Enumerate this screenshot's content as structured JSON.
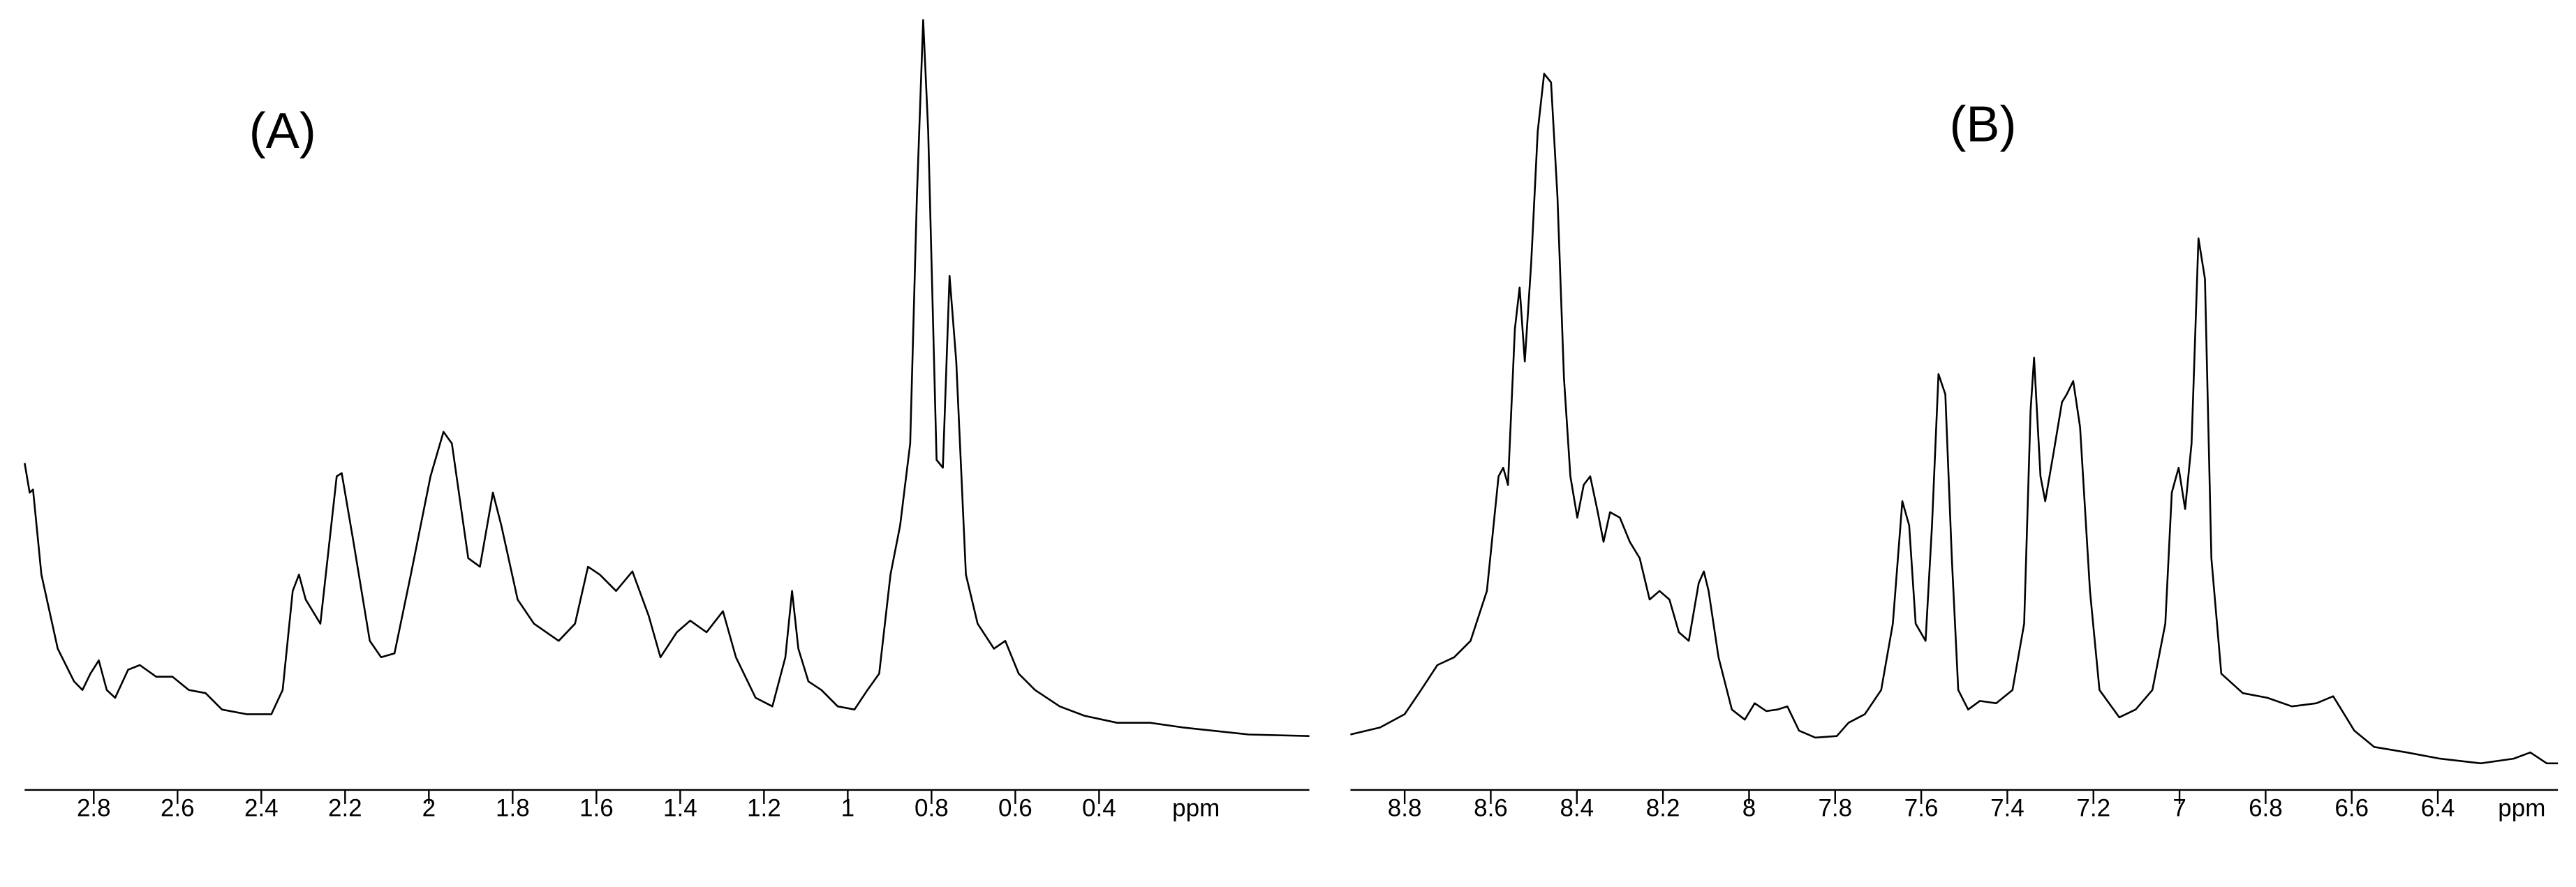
{
  "chart_data": [
    {
      "type": "line",
      "title": "(A)",
      "xlabel": "ppm",
      "xlim": [
        2.965,
        -0.102
      ],
      "ylim": [
        0,
        100
      ],
      "color": "#000000",
      "xticks": [
        2.8,
        2.6,
        2.4,
        2.2,
        2.0,
        1.8,
        1.6,
        1.4,
        1.2,
        1.0,
        0.8,
        0.6,
        0.4
      ],
      "x": [
        2.965,
        2.953,
        2.945,
        2.925,
        2.886,
        2.847,
        2.827,
        2.808,
        2.788,
        2.769,
        2.749,
        2.718,
        2.69,
        2.651,
        2.612,
        2.573,
        2.533,
        2.494,
        2.435,
        2.376,
        2.349,
        2.325,
        2.31,
        2.294,
        2.259,
        2.22,
        2.208,
        2.18,
        2.141,
        2.114,
        2.082,
        2.043,
        1.996,
        1.965,
        1.945,
        1.906,
        1.878,
        1.847,
        1.827,
        1.788,
        1.749,
        1.69,
        1.651,
        1.62,
        1.592,
        1.553,
        1.514,
        1.475,
        1.447,
        1.408,
        1.376,
        1.337,
        1.298,
        1.267,
        1.22,
        1.18,
        1.149,
        1.133,
        1.118,
        1.094,
        1.063,
        1.024,
        0.984,
        0.953,
        0.925,
        0.898,
        0.875,
        0.851,
        0.835,
        0.82,
        0.808,
        0.788,
        0.773,
        0.757,
        0.741,
        0.718,
        0.69,
        0.651,
        0.624,
        0.592,
        0.553,
        0.494,
        0.435,
        0.357,
        0.278,
        0.2,
        0.043,
        -0.102
      ],
      "values": [
        41.7,
        37.9,
        38.3,
        27.4,
        17.9,
        13.7,
        12.6,
        14.7,
        16.4,
        12.6,
        11.6,
        15.2,
        15.8,
        14.3,
        14.3,
        12.6,
        12.2,
        10.1,
        9.5,
        9.5,
        12.6,
        25.3,
        27.4,
        24.2,
        21.1,
        40.0,
        40.4,
        31.6,
        18.9,
        16.8,
        17.3,
        27.4,
        40.0,
        45.7,
        44.2,
        29.5,
        28.4,
        37.9,
        33.7,
        24.2,
        21.1,
        18.9,
        21.1,
        28.4,
        27.4,
        25.3,
        27.8,
        22.1,
        16.8,
        20.0,
        21.5,
        20.0,
        22.7,
        16.8,
        11.6,
        10.5,
        16.8,
        25.3,
        17.9,
        13.7,
        12.6,
        10.5,
        10.1,
        12.6,
        14.7,
        27.4,
        33.7,
        44.2,
        75.8,
        98.5,
        84.2,
        42.1,
        41.1,
        65.7,
        54.7,
        27.4,
        21.1,
        17.9,
        18.9,
        14.7,
        12.6,
        10.5,
        9.3,
        8.4,
        8.4,
        7.8,
        6.9,
        6.7
      ]
    },
    {
      "type": "line",
      "title": "(B)",
      "xlabel": "ppm",
      "xlim": [
        8.926,
        6.121
      ],
      "ylim": [
        0,
        100
      ],
      "color": "#000000",
      "xticks": [
        8.8,
        8.6,
        8.4,
        8.2,
        8.0,
        7.8,
        7.6,
        7.4,
        7.2,
        7.0,
        6.8,
        6.6,
        6.4
      ],
      "x": [
        8.926,
        8.857,
        8.8,
        8.762,
        8.724,
        8.685,
        8.647,
        8.609,
        8.582,
        8.571,
        8.56,
        8.544,
        8.533,
        8.521,
        8.506,
        8.491,
        8.476,
        8.46,
        8.445,
        8.43,
        8.415,
        8.399,
        8.384,
        8.369,
        8.353,
        8.338,
        8.323,
        8.3,
        8.277,
        8.254,
        8.231,
        8.208,
        8.185,
        8.163,
        8.14,
        8.117,
        8.105,
        8.094,
        8.071,
        8.04,
        8.01,
        7.987,
        7.96,
        7.934,
        7.911,
        7.884,
        7.846,
        7.796,
        7.769,
        7.731,
        7.693,
        7.666,
        7.644,
        7.628,
        7.613,
        7.59,
        7.575,
        7.56,
        7.544,
        7.529,
        7.514,
        7.491,
        7.464,
        7.426,
        7.388,
        7.361,
        7.346,
        7.338,
        7.323,
        7.312,
        7.292,
        7.273,
        7.262,
        7.247,
        7.231,
        7.208,
        7.186,
        7.14,
        7.102,
        7.063,
        7.033,
        7.018,
        7.002,
        6.987,
        6.972,
        6.956,
        6.941,
        6.926,
        6.903,
        6.853,
        6.796,
        6.739,
        6.682,
        6.643,
        6.624,
        6.594,
        6.548,
        6.472,
        6.395,
        6.3,
        6.224,
        6.185,
        6.147,
        6.121
      ],
      "values": [
        6.9,
        7.8,
        9.5,
        12.6,
        15.8,
        16.8,
        18.9,
        25.3,
        40.0,
        41.1,
        38.9,
        58.9,
        64.2,
        54.7,
        67.4,
        84.2,
        91.6,
        90.5,
        75.8,
        52.6,
        40.0,
        34.7,
        38.9,
        40.0,
        35.8,
        31.6,
        35.4,
        34.7,
        31.6,
        29.5,
        24.2,
        25.3,
        24.2,
        20.0,
        18.9,
        26.3,
        27.8,
        25.3,
        16.8,
        10.1,
        8.8,
        10.9,
        9.9,
        10.1,
        10.5,
        7.4,
        6.5,
        6.7,
        8.4,
        9.5,
        12.6,
        21.1,
        36.8,
        33.7,
        21.1,
        18.9,
        33.7,
        53.1,
        50.5,
        29.5,
        12.6,
        10.1,
        11.2,
        10.9,
        12.6,
        21.1,
        48.4,
        55.2,
        40.0,
        36.8,
        43.2,
        49.5,
        50.5,
        52.2,
        46.3,
        25.3,
        12.6,
        9.1,
        10.1,
        12.6,
        21.1,
        37.9,
        41.1,
        35.8,
        44.2,
        70.5,
        65.3,
        29.5,
        14.7,
        12.2,
        11.6,
        10.5,
        10.9,
        11.8,
        10.1,
        7.4,
        5.3,
        4.6,
        3.8,
        3.2,
        3.8,
        4.6,
        3.2,
        3.2
      ]
    }
  ]
}
